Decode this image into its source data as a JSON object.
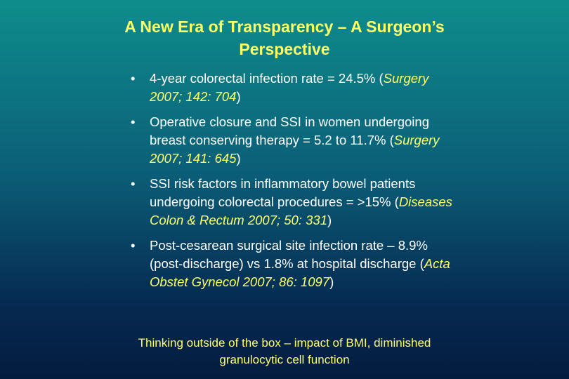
{
  "slide": {
    "title_line1": "A New Era of Transparency – A Surgeon’s",
    "title_line2": "Perspective",
    "bullets": [
      {
        "pre": "4-year colorectal infection rate = 24.5% (",
        "cite": "Surgery 2007; 142: 704",
        "post": ")"
      },
      {
        "pre": "Operative closure and SSI in women undergoing breast conserving therapy = 5.2 to 11.7% (",
        "cite": "Surgery 2007; 141: 645",
        "post": ")"
      },
      {
        "pre": "SSI risk factors in inflammatory bowel patients undergoing colorectal procedures = >15% (",
        "cite": "Diseases Colon & Rectum 2007; 50: 331",
        "post": ")"
      },
      {
        "pre": "Post-cesarean surgical site infection rate – 8.9% (post-discharge) vs 1.8% at hospital discharge (",
        "cite": "Acta Obstet Gynecol 2007; 86: 1097",
        "post": ")"
      }
    ],
    "bullet_glyph": "•",
    "footer_line1": "Thinking outside of the box – impact of BMI, diminished",
    "footer_line2": "granulocytic cell function"
  }
}
